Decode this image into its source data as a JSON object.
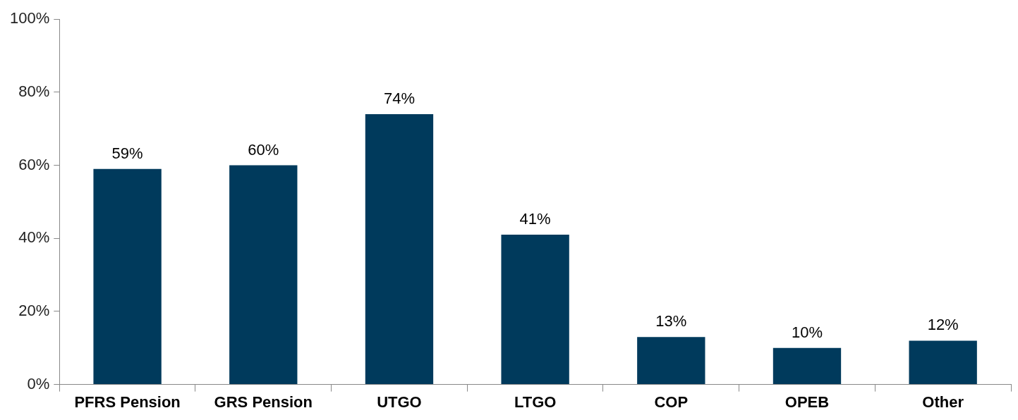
{
  "chart_data": {
    "type": "bar",
    "categories": [
      "PFRS Pension",
      "GRS Pension",
      "UTGO",
      "LTGO",
      "COP",
      "OPEB",
      "Other"
    ],
    "values": [
      59,
      60,
      74,
      41,
      13,
      10,
      12
    ],
    "value_labels": [
      "59%",
      "60%",
      "74%",
      "41%",
      "13%",
      "10%",
      "12%"
    ],
    "color": "#003a5c",
    "ylim": [
      0,
      100
    ],
    "yticks": [
      {
        "value": 0,
        "label": "0%"
      },
      {
        "value": 20,
        "label": "20%"
      },
      {
        "value": 40,
        "label": "40%"
      },
      {
        "value": 60,
        "label": "60%"
      },
      {
        "value": 80,
        "label": "80%"
      },
      {
        "value": 100,
        "label": "100%"
      }
    ],
    "grid": false,
    "legend": false
  }
}
